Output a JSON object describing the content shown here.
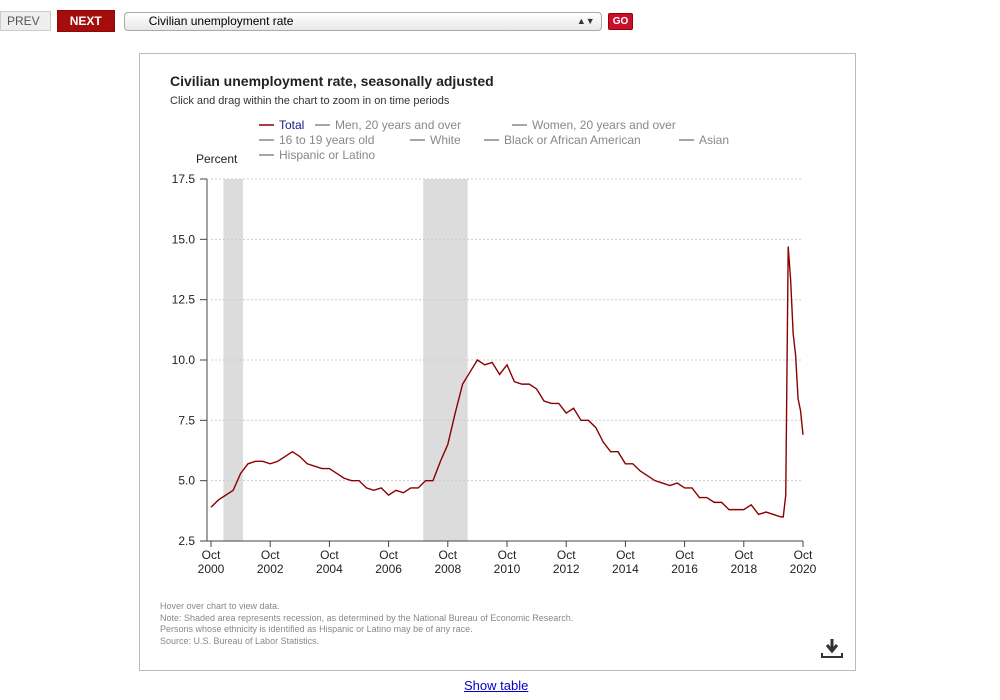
{
  "toolbar": {
    "prev": "PREV",
    "next": "NEXT",
    "select_value": "Civilian unemployment rate",
    "go": "GO"
  },
  "chart_data": {
    "type": "line",
    "title": "Civilian unemployment rate, seasonally adjusted",
    "subtitle": "Click and drag within the chart to zoom in on time periods",
    "ylabel": "Percent",
    "xlabel": "",
    "ylim": [
      2.5,
      17.5
    ],
    "xlim": [
      2000.75,
      2020.75
    ],
    "yticks": [
      "17.5",
      "15.0",
      "12.5",
      "10.0",
      "7.5",
      "5.0",
      "2.5"
    ],
    "xticks": [
      {
        "m": "Oct",
        "y": "2000"
      },
      {
        "m": "Oct",
        "y": "2002"
      },
      {
        "m": "Oct",
        "y": "2004"
      },
      {
        "m": "Oct",
        "y": "2006"
      },
      {
        "m": "Oct",
        "y": "2008"
      },
      {
        "m": "Oct",
        "y": "2010"
      },
      {
        "m": "Oct",
        "y": "2012"
      },
      {
        "m": "Oct",
        "y": "2014"
      },
      {
        "m": "Oct",
        "y": "2016"
      },
      {
        "m": "Oct",
        "y": "2018"
      },
      {
        "m": "Oct",
        "y": "2020"
      }
    ],
    "legend": [
      "Total",
      "Men, 20 years and over",
      "Women, 20 years and over",
      "16 to 19 years old",
      "White",
      "Black or African American",
      "Asian",
      "Hispanic or Latino"
    ],
    "recessions": [
      [
        2001.17,
        2001.83
      ],
      [
        2007.92,
        2009.42
      ]
    ],
    "series": [
      {
        "name": "Total",
        "color": "#8b0000",
        "x": [
          2000.75,
          2001.0,
          2001.25,
          2001.5,
          2001.75,
          2002.0,
          2002.25,
          2002.5,
          2002.75,
          2003.0,
          2003.25,
          2003.5,
          2003.75,
          2004.0,
          2004.25,
          2004.5,
          2004.75,
          2005.0,
          2005.25,
          2005.5,
          2005.75,
          2006.0,
          2006.25,
          2006.5,
          2006.75,
          2007.0,
          2007.25,
          2007.5,
          2007.75,
          2008.0,
          2008.25,
          2008.5,
          2008.75,
          2009.0,
          2009.25,
          2009.5,
          2009.75,
          2010.0,
          2010.25,
          2010.5,
          2010.75,
          2011.0,
          2011.25,
          2011.5,
          2011.75,
          2012.0,
          2012.25,
          2012.5,
          2012.75,
          2013.0,
          2013.25,
          2013.5,
          2013.75,
          2014.0,
          2014.25,
          2014.5,
          2014.75,
          2015.0,
          2015.25,
          2015.5,
          2015.75,
          2016.0,
          2016.25,
          2016.5,
          2016.75,
          2017.0,
          2017.25,
          2017.5,
          2017.75,
          2018.0,
          2018.25,
          2018.5,
          2018.75,
          2019.0,
          2019.25,
          2019.5,
          2019.75,
          2020.0,
          2020.083,
          2020.167,
          2020.25,
          2020.333,
          2020.417,
          2020.5,
          2020.583,
          2020.667,
          2020.75
        ],
        "values": [
          3.9,
          4.2,
          4.4,
          4.6,
          5.3,
          5.7,
          5.8,
          5.8,
          5.7,
          5.8,
          6.0,
          6.2,
          6.0,
          5.7,
          5.6,
          5.5,
          5.5,
          5.3,
          5.1,
          5.0,
          5.0,
          4.7,
          4.6,
          4.7,
          4.4,
          4.6,
          4.5,
          4.7,
          4.7,
          5.0,
          5.0,
          5.8,
          6.5,
          7.8,
          9.0,
          9.5,
          10.0,
          9.8,
          9.9,
          9.4,
          9.8,
          9.1,
          9.0,
          9.0,
          8.8,
          8.3,
          8.2,
          8.2,
          7.8,
          8.0,
          7.5,
          7.5,
          7.2,
          6.6,
          6.2,
          6.2,
          5.7,
          5.7,
          5.4,
          5.2,
          5.0,
          4.9,
          4.8,
          4.9,
          4.7,
          4.7,
          4.3,
          4.3,
          4.1,
          4.1,
          3.8,
          3.8,
          3.8,
          4.0,
          3.6,
          3.7,
          3.6,
          3.5,
          3.5,
          4.4,
          14.7,
          13.3,
          11.1,
          10.2,
          8.4,
          7.9,
          6.9
        ]
      }
    ]
  },
  "notes": [
    "Hover over chart to view data.",
    "Note: Shaded area represents recession, as determined by the National Bureau of Economic Research.",
    "Persons whose ethnicity is identified as Hispanic or Latino may be of any race.",
    "Source: U.S. Bureau of Labor Statistics."
  ],
  "show_table": "Show table"
}
